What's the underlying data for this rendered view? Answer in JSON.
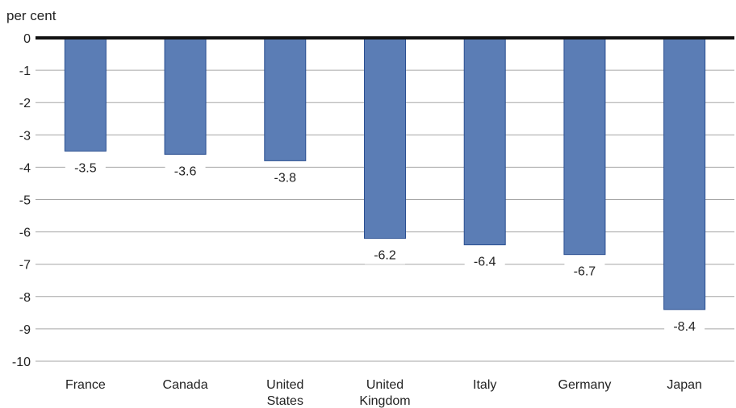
{
  "chart_data": {
    "type": "bar",
    "unit_label": "per cent",
    "categories": [
      "France",
      "Canada",
      "United States",
      "United Kingdom",
      "Italy",
      "Germany",
      "Japan"
    ],
    "category_lines": [
      [
        "France"
      ],
      [
        "Canada"
      ],
      [
        "United",
        "States"
      ],
      [
        "United",
        "Kingdom"
      ],
      [
        "Italy"
      ],
      [
        "Germany"
      ],
      [
        "Japan"
      ]
    ],
    "values": [
      -3.5,
      -3.6,
      -3.8,
      -6.2,
      -6.4,
      -6.7,
      -8.4
    ],
    "data_labels": [
      "-3.5",
      "-3.6",
      "-3.8",
      "-6.2",
      "-6.4",
      "-6.7",
      "-8.4"
    ],
    "ylim": [
      -10,
      0
    ],
    "yticks": [
      0,
      -1,
      -2,
      -3,
      -4,
      -5,
      -6,
      -7,
      -8,
      -9,
      -10
    ],
    "ytick_labels": [
      "0",
      "-1",
      "-2",
      "-3",
      "-4",
      "-5",
      "-6",
      "-7",
      "-8",
      "-9",
      "-10"
    ],
    "grid": true,
    "legend": "none",
    "colors": {
      "bar_fill": "#5b7db5",
      "bar_stroke": "#2a4f91",
      "grid": "#a6a6a6",
      "zero_line": "#111111"
    }
  }
}
